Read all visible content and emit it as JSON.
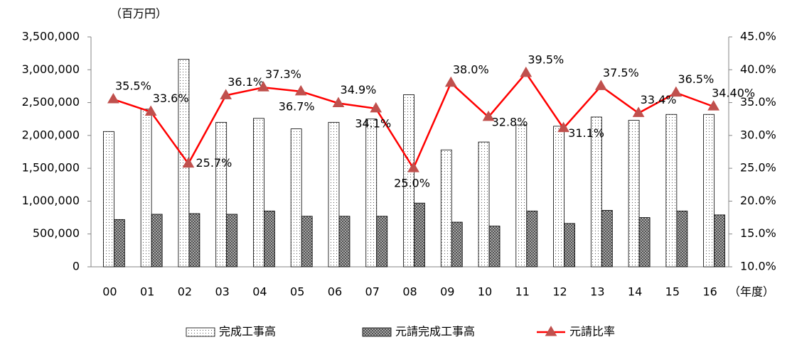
{
  "chart_data": {
    "type": "bar",
    "y_label": "（百万円）",
    "x_label": "（年度）",
    "categories": [
      "00",
      "01",
      "02",
      "03",
      "04",
      "05",
      "06",
      "07",
      "08",
      "09",
      "10",
      "11",
      "12",
      "13",
      "14",
      "15",
      "16"
    ],
    "series": [
      {
        "name": "完成工事高",
        "type": "bar",
        "color": "#ffffff",
        "values": [
          2060000,
          2400000,
          3160000,
          2200000,
          2260000,
          2100000,
          2200000,
          2250000,
          2620000,
          1780000,
          1900000,
          2160000,
          2140000,
          2280000,
          2230000,
          2320000,
          2320000
        ]
      },
      {
        "name": "元請完成工事高",
        "type": "bar",
        "color": "#404040",
        "values": [
          720000,
          800000,
          810000,
          800000,
          850000,
          770000,
          770000,
          770000,
          970000,
          680000,
          620000,
          850000,
          660000,
          860000,
          750000,
          850000,
          790000
        ]
      },
      {
        "name": "元請比率",
        "type": "line",
        "axis": "y2",
        "color": "#ff0000",
        "marker_color": "#c0504d",
        "values": [
          35.5,
          33.6,
          25.7,
          36.1,
          37.3,
          36.7,
          34.9,
          34.1,
          25.0,
          38.0,
          32.8,
          39.5,
          31.1,
          37.5,
          33.4,
          36.5,
          34.4
        ],
        "value_labels": [
          "35.5%",
          "33.6%",
          "25.7%",
          "36.1%",
          "37.3%",
          "36.7%",
          "34.9%",
          "34.1%",
          "25.0%",
          "38.0%",
          "32.8%",
          "39.5%",
          "31.1%",
          "37.5%",
          "33.4%",
          "36.5%",
          "34.40%"
        ]
      }
    ],
    "ylim": [
      0,
      3500000
    ],
    "yticks": [
      0,
      {
        "value": 500000,
        "label": "500,000"
      },
      {
        "value": 1000000,
        "label": "1,000,000"
      },
      {
        "value": 1500000,
        "label": "1,500,000"
      },
      {
        "value": 2000000,
        "label": "2,000,000"
      },
      {
        "value": 2500000,
        "label": "2,500,000"
      },
      {
        "value": 3000000,
        "label": "3,000,000"
      },
      {
        "value": 3500000,
        "label": "3,500,000"
      }
    ],
    "y2lim": [
      10,
      45
    ],
    "y2ticks": [
      {
        "value": 10,
        "label": "10.0%"
      },
      {
        "value": 15,
        "label": "15.0%"
      },
      {
        "value": 20,
        "label": "20.0%"
      },
      {
        "value": 25,
        "label": "25.0%"
      },
      {
        "value": 30,
        "label": "30.0%"
      },
      {
        "value": 35,
        "label": "35.0%"
      },
      {
        "value": 40,
        "label": "40.0%"
      },
      {
        "value": 45,
        "label": "45.0%"
      }
    ],
    "grid": false,
    "legend": "bottom"
  }
}
